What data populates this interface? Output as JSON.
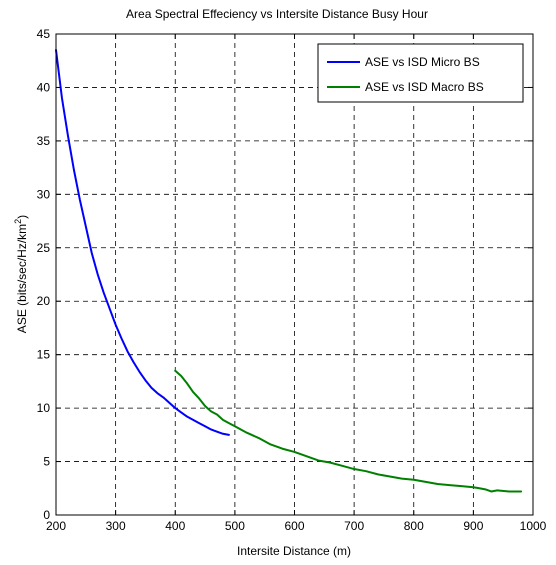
{
  "chart_data": {
    "type": "line",
    "title": "Area Spectral Effeciency vs Intersite Distance Busy Hour",
    "xlabel": "Intersite Distance (m)",
    "ylabel_main": "ASE (bits/sec/Hz/km",
    "ylabel_sup": "2",
    "ylabel_close": ")",
    "xlim": [
      200,
      1000
    ],
    "ylim": [
      0,
      45
    ],
    "x_ticks": [
      200,
      300,
      400,
      500,
      600,
      700,
      800,
      900,
      1000
    ],
    "y_ticks": [
      0,
      5,
      10,
      15,
      20,
      25,
      30,
      35,
      40,
      45
    ],
    "grid": true,
    "grid_style": "dashed",
    "legend_position": "top-right",
    "series": [
      {
        "name": "ASE vs ISD Micro BS",
        "color": "#0000ff",
        "x": [
          200,
          210,
          220,
          230,
          240,
          250,
          260,
          270,
          280,
          290,
          300,
          310,
          320,
          330,
          340,
          350,
          360,
          370,
          380,
          390,
          400,
          410,
          420,
          430,
          440,
          450,
          460,
          470,
          480,
          490
        ],
        "y": [
          43.5,
          39.0,
          35.5,
          32.3,
          29.5,
          27.0,
          24.5,
          22.5,
          20.8,
          19.3,
          17.8,
          16.5,
          15.3,
          14.3,
          13.4,
          12.6,
          11.9,
          11.4,
          11.0,
          10.5,
          10.0,
          9.6,
          9.2,
          8.9,
          8.6,
          8.3,
          8.0,
          7.8,
          7.6,
          7.5
        ]
      },
      {
        "name": "ASE vs ISD Macro BS",
        "color": "#008000",
        "x": [
          400,
          410,
          420,
          430,
          440,
          450,
          460,
          470,
          480,
          490,
          500,
          520,
          540,
          560,
          580,
          600,
          620,
          640,
          660,
          680,
          700,
          720,
          740,
          760,
          780,
          800,
          820,
          840,
          860,
          880,
          900,
          910,
          920,
          930,
          940,
          960,
          980
        ],
        "y": [
          13.5,
          13.0,
          12.3,
          11.5,
          10.9,
          10.2,
          9.7,
          9.4,
          8.9,
          8.6,
          8.3,
          7.7,
          7.2,
          6.6,
          6.2,
          5.9,
          5.5,
          5.1,
          4.9,
          4.6,
          4.3,
          4.1,
          3.8,
          3.6,
          3.4,
          3.3,
          3.1,
          2.9,
          2.8,
          2.7,
          2.6,
          2.5,
          2.4,
          2.2,
          2.3,
          2.2,
          2.2
        ]
      }
    ]
  }
}
